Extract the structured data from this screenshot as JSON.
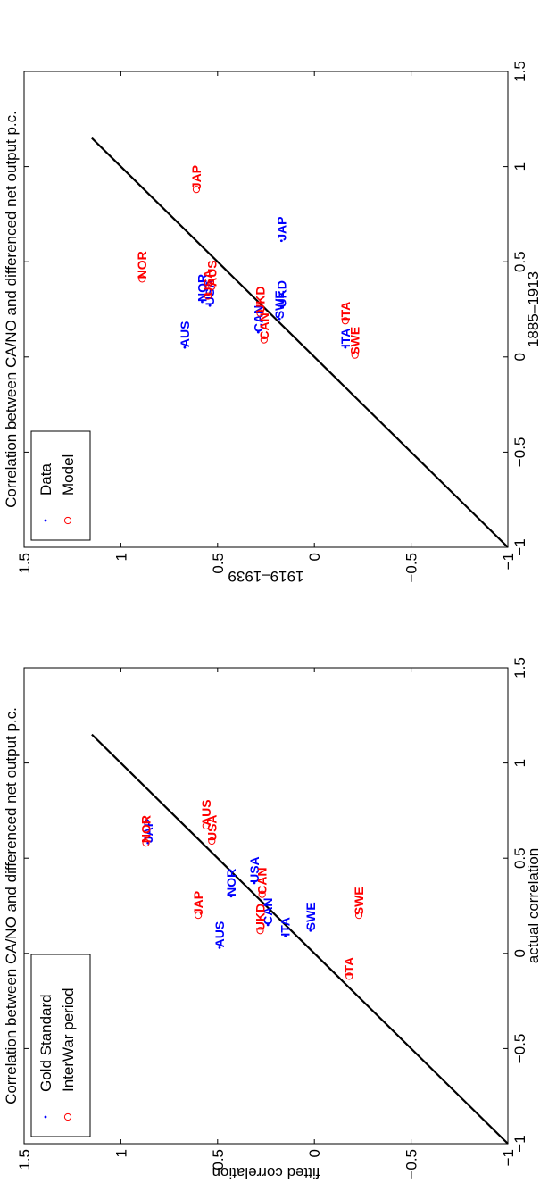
{
  "figure": {
    "rotation_deg": -90
  },
  "chart_data": [
    {
      "type": "scatter",
      "title": "Correlation between CA/NO and differenced net output p.c.",
      "xlabel": "actual correlation",
      "ylabel": "fitted correlation",
      "xlim": [
        -1,
        1.5
      ],
      "ylim": [
        -1,
        1.5
      ],
      "xticks": [
        -1,
        -0.5,
        0,
        0.5,
        1,
        1.5
      ],
      "yticks": [
        -1,
        -0.5,
        0,
        0.5,
        1,
        1.5
      ],
      "xtick_labels": [
        "−1",
        "−0.5",
        "0",
        "0.5",
        "1",
        "1.5"
      ],
      "ytick_labels": [
        "−1",
        "−0.5",
        "0",
        "0.5",
        "1",
        "1.5"
      ],
      "reference_line": {
        "from": [
          -1,
          -1
        ],
        "to": [
          1.15,
          1.15
        ],
        "color": "#000000"
      },
      "legend": {
        "placement": "top-left",
        "entries": [
          "Gold Standard",
          "InterWar period"
        ]
      },
      "series": [
        {
          "name": "Gold Standard",
          "color": "#0000ff",
          "marker": "dot",
          "points": [
            {
              "label": "JAP",
              "x": 0.58,
              "y": 0.86
            },
            {
              "label": "USA",
              "x": 0.37,
              "y": 0.31
            },
            {
              "label": "NOR",
              "x": 0.3,
              "y": 0.43
            },
            {
              "label": "AUS",
              "x": 0.03,
              "y": 0.49
            },
            {
              "label": "CAN",
              "x": 0.15,
              "y": 0.24
            },
            {
              "label": "ITA",
              "x": 0.09,
              "y": 0.15
            },
            {
              "label": "SWE",
              "x": 0.12,
              "y": 0.02
            }
          ]
        },
        {
          "name": "InterWar period",
          "color": "#ff0000",
          "marker": "circle",
          "points": [
            {
              "label": "NOR",
              "x": 0.58,
              "y": 0.87
            },
            {
              "label": "AUS",
              "x": 0.67,
              "y": 0.56
            },
            {
              "label": "USA",
              "x": 0.59,
              "y": 0.53
            },
            {
              "label": "JAP",
              "x": 0.2,
              "y": 0.6
            },
            {
              "label": "CAN",
              "x": 0.31,
              "y": 0.27
            },
            {
              "label": "UKD",
              "x": 0.12,
              "y": 0.28
            },
            {
              "label": "ITA",
              "x": -0.12,
              "y": -0.18
            },
            {
              "label": "SWE",
              "x": 0.2,
              "y": -0.23
            }
          ]
        }
      ]
    },
    {
      "type": "scatter",
      "title": "Correlation between CA/NO and differenced net output p.c.",
      "xlabel": "1885–1913",
      "ylabel": "1919–1939",
      "xlim": [
        -1,
        1.5
      ],
      "ylim": [
        -1,
        1.5
      ],
      "xticks": [
        -1,
        -0.5,
        0,
        0.5,
        1,
        1.5
      ],
      "yticks": [
        -1,
        -0.5,
        0,
        0.5,
        1,
        1.5
      ],
      "xtick_labels": [
        "−1",
        "−0.5",
        "0",
        "0.5",
        "1",
        "1.5"
      ],
      "ytick_labels": [
        "−1",
        "−0.5",
        "0",
        "0.5",
        "1",
        "1.5"
      ],
      "reference_line": {
        "from": [
          -1,
          -1
        ],
        "to": [
          1.15,
          1.15
        ],
        "color": "#000000"
      },
      "legend": {
        "placement": "top-left",
        "entries": [
          "Data",
          "Model"
        ]
      },
      "series": [
        {
          "name": "Data",
          "color": "#0000ff",
          "marker": "dot",
          "points": [
            {
              "label": "JAP",
              "x": 0.61,
              "y": 0.17
            },
            {
              "label": "USA",
              "x": 0.27,
              "y": 0.54
            },
            {
              "label": "NOR",
              "x": 0.29,
              "y": 0.58
            },
            {
              "label": "AUS",
              "x": 0.05,
              "y": 0.67
            },
            {
              "label": "CAN",
              "x": 0.13,
              "y": 0.29
            },
            {
              "label": "UKD",
              "x": 0.26,
              "y": 0.17
            },
            {
              "label": "SWE",
              "x": 0.2,
              "y": 0.18
            },
            {
              "label": "ITA",
              "x": 0.05,
              "y": -0.16
            }
          ]
        },
        {
          "name": "Model",
          "color": "#ff0000",
          "marker": "circle",
          "points": [
            {
              "label": "NOR",
              "x": 0.41,
              "y": 0.89
            },
            {
              "label": "JAP",
              "x": 0.88,
              "y": 0.61
            },
            {
              "label": "AUS",
              "x": 0.37,
              "y": 0.53
            },
            {
              "label": "USA",
              "x": 0.32,
              "y": 0.55
            },
            {
              "label": "UKD",
              "x": 0.23,
              "y": 0.28
            },
            {
              "label": "CAN",
              "x": 0.09,
              "y": 0.26
            },
            {
              "label": "ITA",
              "x": 0.19,
              "y": -0.16
            },
            {
              "label": "SWE",
              "x": 0.01,
              "y": -0.21
            }
          ]
        }
      ]
    }
  ]
}
